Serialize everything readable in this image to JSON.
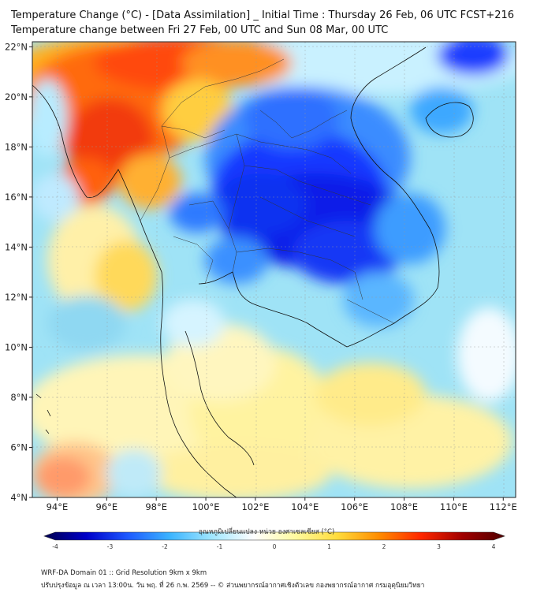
{
  "title": {
    "line1": "Temperature Change (°C) - [Data Assimilation] _ Initial Time : Thursday 26 Feb, 06 UTC FCST+216",
    "line2": "Temperature change between Fri 27 Feb, 00 UTC and Sun 08 Mar, 00 UTC"
  },
  "map": {
    "lon_range": [
      93,
      112.5
    ],
    "lat_range": [
      4,
      22.2
    ],
    "lon_ticks": [
      "94°E",
      "96°E",
      "98°E",
      "100°E",
      "102°E",
      "104°E",
      "106°E",
      "108°E",
      "110°E",
      "112°E"
    ],
    "lat_ticks": [
      "22°N",
      "20°N",
      "18°N",
      "16°N",
      "14°N",
      "12°N",
      "10°N",
      "8°N",
      "6°N",
      "4°N"
    ]
  },
  "colorbar": {
    "label": "อุณหภูมิเปลี่ยนแปลง หน่วย องศาเซลเซียส (°C)",
    "ticks": [
      "-4",
      "-3",
      "-2",
      "-1",
      "0",
      "1",
      "2",
      "3",
      "4"
    ],
    "colors": [
      "#00004f",
      "#0000c8",
      "#1e5aff",
      "#3cb4ff",
      "#a0e6ff",
      "#ffffff",
      "#fffaa0",
      "#ffdc3c",
      "#ff8c00",
      "#ff2800",
      "#a00000",
      "#500000"
    ]
  },
  "footer": {
    "line1": "WRF-DA Domain 01 :: Grid Resolution 9km x 9km",
    "line2": "ปรับปรุงข้อมูล ณ เวลา 13:00น. วัน พฤ. ที่ 26 ก.พ. 2569 -- © ส่วนพยากรณ์อากาศเชิงตัวเลข กองพยากรณ์อากาศ กรมอุตุนิยมวิทยา"
  }
}
